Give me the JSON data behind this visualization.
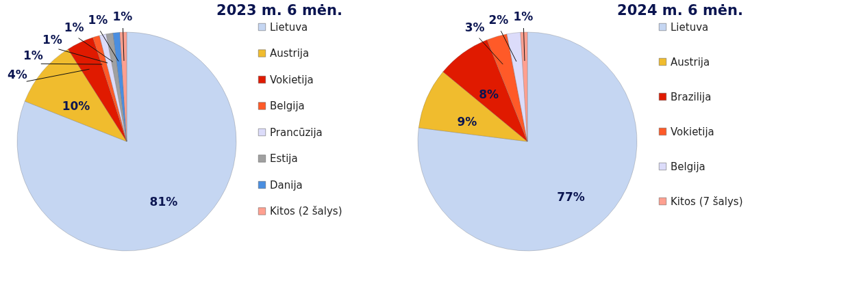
{
  "chart_data": [
    {
      "type": "pie",
      "title": "2023 m. 6 mėn.",
      "legend": "right",
      "categories": [
        "Lietuva",
        "Austrija",
        "Vokietija",
        "Belgija",
        "Prancūzija",
        "Estija",
        "Danija",
        "Kitos (2 šalys)"
      ],
      "values": [
        81,
        10,
        4,
        1,
        1,
        1,
        1,
        1
      ],
      "colors": [
        "#c5d6f2",
        "#f0bc2e",
        "#e01a00",
        "#ff5a28",
        "#dcdcfa",
        "#a0a0a0",
        "#4a8ee0",
        "#ffa090"
      ],
      "value_labels": [
        "81%",
        "10%",
        "4%",
        "1%",
        "1%",
        "1%",
        "1%",
        "1%"
      ]
    },
    {
      "type": "pie",
      "title": "2024 m. 6 mėn.",
      "legend": "right",
      "categories": [
        "Lietuva",
        "Austrija",
        "Brazilija",
        "Vokietija",
        "Belgija",
        "Kitos (7 šalys)"
      ],
      "values": [
        77,
        9,
        8,
        3,
        2,
        1
      ],
      "colors": [
        "#c5d6f2",
        "#f0bc2e",
        "#e01a00",
        "#ff5a28",
        "#dcdcfa",
        "#ffa090"
      ],
      "value_labels": [
        "77%",
        "9%",
        "8%",
        "3%",
        "2%",
        "1%"
      ]
    }
  ]
}
